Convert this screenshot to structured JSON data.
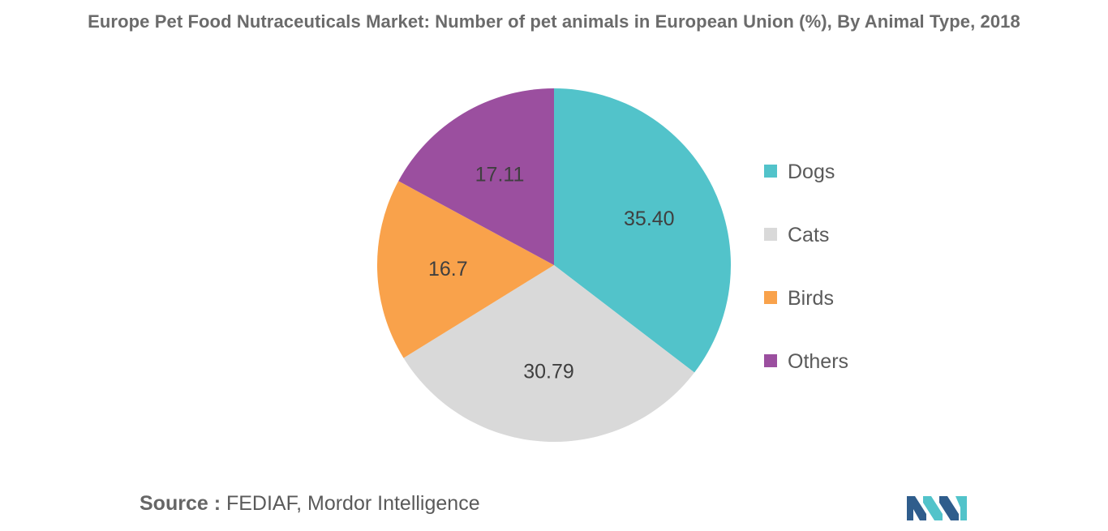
{
  "chart_data": {
    "type": "pie",
    "title": "Europe Pet Food Nutraceuticals Market: Number of pet animals in European Union (%), By Animal Type, 2018",
    "slices": [
      {
        "name": "Dogs",
        "value": 35.4,
        "label": "35.40",
        "color": "#52c3ca"
      },
      {
        "name": "Cats",
        "value": 30.79,
        "label": "30.79",
        "color": "#d9d9d9"
      },
      {
        "name": "Birds",
        "value": 16.7,
        "label": "16.7",
        "color": "#f9a24b"
      },
      {
        "name": "Others",
        "value": 17.11,
        "label": "17.11",
        "color": "#9b4f9f"
      }
    ],
    "legend_position": "right",
    "start_angle": "12 o'clock",
    "direction": "clockwise"
  },
  "source": {
    "label": "Source :",
    "text": "FEDIAF, Mordor Intelligence"
  },
  "logo": {
    "icon": "mordor-intelligence-logo-icon",
    "colors": [
      "#2f5d8c",
      "#52c3ca"
    ]
  }
}
